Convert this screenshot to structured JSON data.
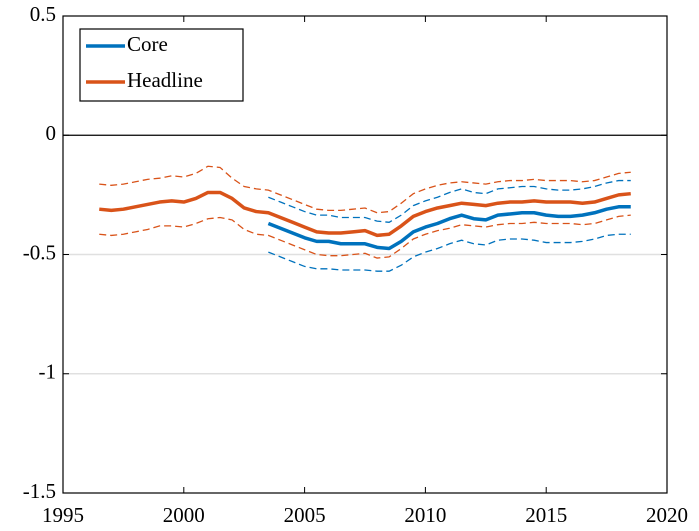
{
  "chart_data": {
    "type": "line",
    "x": [
      1996.5,
      1997,
      1997.5,
      1998,
      1998.5,
      1999,
      1999.5,
      2000,
      2000.5,
      2001,
      2001.5,
      2002,
      2002.5,
      2003,
      2003.5,
      2004,
      2004.5,
      2005,
      2005.5,
      2006,
      2006.5,
      2007,
      2007.5,
      2008,
      2008.5,
      2009,
      2009.5,
      2010,
      2010.5,
      2011,
      2011.5,
      2012,
      2012.5,
      2013,
      2013.5,
      2014,
      2014.5,
      2015,
      2015.5,
      2016,
      2016.5,
      2017,
      2017.5,
      2018,
      2018.5
    ],
    "series": [
      {
        "name": "Core",
        "color": "#0072bd",
        "values": [
          null,
          null,
          null,
          null,
          null,
          null,
          null,
          null,
          null,
          null,
          null,
          null,
          null,
          null,
          -0.37,
          -0.39,
          -0.41,
          -0.43,
          -0.445,
          -0.445,
          -0.455,
          -0.455,
          -0.455,
          -0.47,
          -0.475,
          -0.445,
          -0.405,
          -0.385,
          -0.37,
          -0.35,
          -0.335,
          -0.35,
          -0.355,
          -0.335,
          -0.33,
          -0.325,
          -0.325,
          -0.335,
          -0.34,
          -0.34,
          -0.335,
          -0.325,
          -0.31,
          -0.3,
          -0.3
        ],
        "upper": [
          null,
          null,
          null,
          null,
          null,
          null,
          null,
          null,
          null,
          null,
          null,
          null,
          null,
          null,
          -0.26,
          -0.28,
          -0.3,
          -0.32,
          -0.335,
          -0.335,
          -0.345,
          -0.345,
          -0.345,
          -0.36,
          -0.365,
          -0.335,
          -0.295,
          -0.275,
          -0.26,
          -0.24,
          -0.225,
          -0.24,
          -0.245,
          -0.225,
          -0.22,
          -0.215,
          -0.215,
          -0.225,
          -0.23,
          -0.23,
          -0.225,
          -0.215,
          -0.2,
          -0.19,
          -0.19
        ],
        "lower": [
          null,
          null,
          null,
          null,
          null,
          null,
          null,
          null,
          null,
          null,
          null,
          null,
          null,
          null,
          -0.49,
          -0.51,
          -0.53,
          -0.55,
          -0.56,
          -0.56,
          -0.565,
          -0.565,
          -0.565,
          -0.57,
          -0.57,
          -0.545,
          -0.51,
          -0.49,
          -0.475,
          -0.455,
          -0.44,
          -0.455,
          -0.46,
          -0.44,
          -0.435,
          -0.435,
          -0.44,
          -0.45,
          -0.45,
          -0.45,
          -0.445,
          -0.435,
          -0.42,
          -0.415,
          -0.415
        ]
      },
      {
        "name": "Headline",
        "color": "#d95319",
        "values": [
          -0.31,
          -0.315,
          -0.31,
          -0.3,
          -0.29,
          -0.28,
          -0.275,
          -0.28,
          -0.265,
          -0.24,
          -0.24,
          -0.265,
          -0.305,
          -0.32,
          -0.325,
          -0.345,
          -0.365,
          -0.385,
          -0.405,
          -0.41,
          -0.41,
          -0.405,
          -0.4,
          -0.42,
          -0.415,
          -0.38,
          -0.34,
          -0.32,
          -0.305,
          -0.295,
          -0.285,
          -0.29,
          -0.295,
          -0.285,
          -0.28,
          -0.28,
          -0.275,
          -0.28,
          -0.28,
          -0.28,
          -0.285,
          -0.28,
          -0.265,
          -0.25,
          -0.245
        ],
        "upper": [
          -0.205,
          -0.21,
          -0.205,
          -0.195,
          -0.185,
          -0.18,
          -0.17,
          -0.175,
          -0.16,
          -0.13,
          -0.135,
          -0.18,
          -0.215,
          -0.225,
          -0.23,
          -0.25,
          -0.27,
          -0.29,
          -0.31,
          -0.315,
          -0.315,
          -0.31,
          -0.305,
          -0.325,
          -0.32,
          -0.285,
          -0.245,
          -0.225,
          -0.21,
          -0.2,
          -0.195,
          -0.2,
          -0.205,
          -0.195,
          -0.19,
          -0.19,
          -0.185,
          -0.19,
          -0.19,
          -0.19,
          -0.195,
          -0.19,
          -0.175,
          -0.16,
          -0.155
        ],
        "lower": [
          -0.415,
          -0.42,
          -0.415,
          -0.405,
          -0.395,
          -0.38,
          -0.38,
          -0.385,
          -0.37,
          -0.35,
          -0.345,
          -0.355,
          -0.395,
          -0.415,
          -0.42,
          -0.44,
          -0.46,
          -0.48,
          -0.5,
          -0.505,
          -0.505,
          -0.5,
          -0.495,
          -0.515,
          -0.51,
          -0.475,
          -0.435,
          -0.415,
          -0.4,
          -0.39,
          -0.375,
          -0.38,
          -0.385,
          -0.375,
          -0.37,
          -0.37,
          -0.365,
          -0.37,
          -0.37,
          -0.37,
          -0.375,
          -0.37,
          -0.355,
          -0.34,
          -0.335
        ]
      }
    ],
    "xlim": [
      1995,
      2020
    ],
    "xticks": [
      1995,
      2000,
      2005,
      2010,
      2015,
      2020
    ],
    "ylim": [
      -1.5,
      0.5
    ],
    "yticks": [
      -1.5,
      -1,
      -0.5,
      0,
      0.5
    ],
    "grid": true,
    "legend": "northwest"
  }
}
